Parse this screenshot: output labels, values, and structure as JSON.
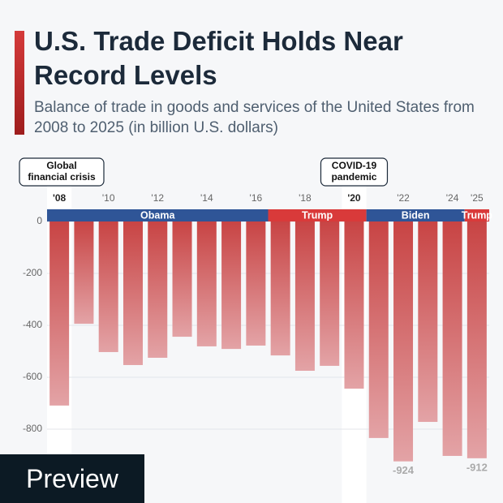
{
  "title": "U.S. Trade Deficit Holds Near Record Levels",
  "subtitle": "Balance of trade in goods and services of the United States from 2008 to 2025 (in billion U.S. dollars)",
  "watermark": "Preview",
  "chart_data": {
    "type": "bar",
    "categories": [
      "'08",
      null,
      "'10",
      null,
      "'12",
      null,
      "'14",
      null,
      "'16",
      null,
      "'18",
      null,
      "'20",
      null,
      "'22",
      null,
      "'24",
      "'25"
    ],
    "values": [
      -709,
      -394,
      -503,
      -553,
      -525,
      -444,
      -481,
      -491,
      -478,
      -516,
      -575,
      -556,
      -644,
      -834,
      -924,
      -772,
      -903,
      -912
    ],
    "value_labels": [
      null,
      null,
      null,
      null,
      null,
      null,
      null,
      null,
      null,
      null,
      null,
      null,
      null,
      null,
      "-924",
      null,
      null,
      "-912"
    ],
    "color": "#c64545",
    "ylim": [
      -1000,
      0
    ],
    "yticks": [
      0,
      -200,
      -400,
      -600,
      -800
    ],
    "grid": true,
    "terms": [
      {
        "label": "Obama",
        "color": "#2f5597",
        "span": [
          0,
          8
        ]
      },
      {
        "label": "Trump",
        "color": "#d93a3a",
        "span": [
          9,
          12
        ]
      },
      {
        "label": "Biden",
        "color": "#2f5597",
        "span": [
          13,
          16
        ]
      },
      {
        "label": "Trump",
        "color": "#d93a3a",
        "span": [
          17,
          17
        ]
      }
    ],
    "annotations": [
      {
        "lines": [
          "Global",
          "financial crisis"
        ],
        "index": 0
      },
      {
        "lines": [
          "COVID-19",
          "pandemic"
        ],
        "index": 12
      }
    ]
  }
}
